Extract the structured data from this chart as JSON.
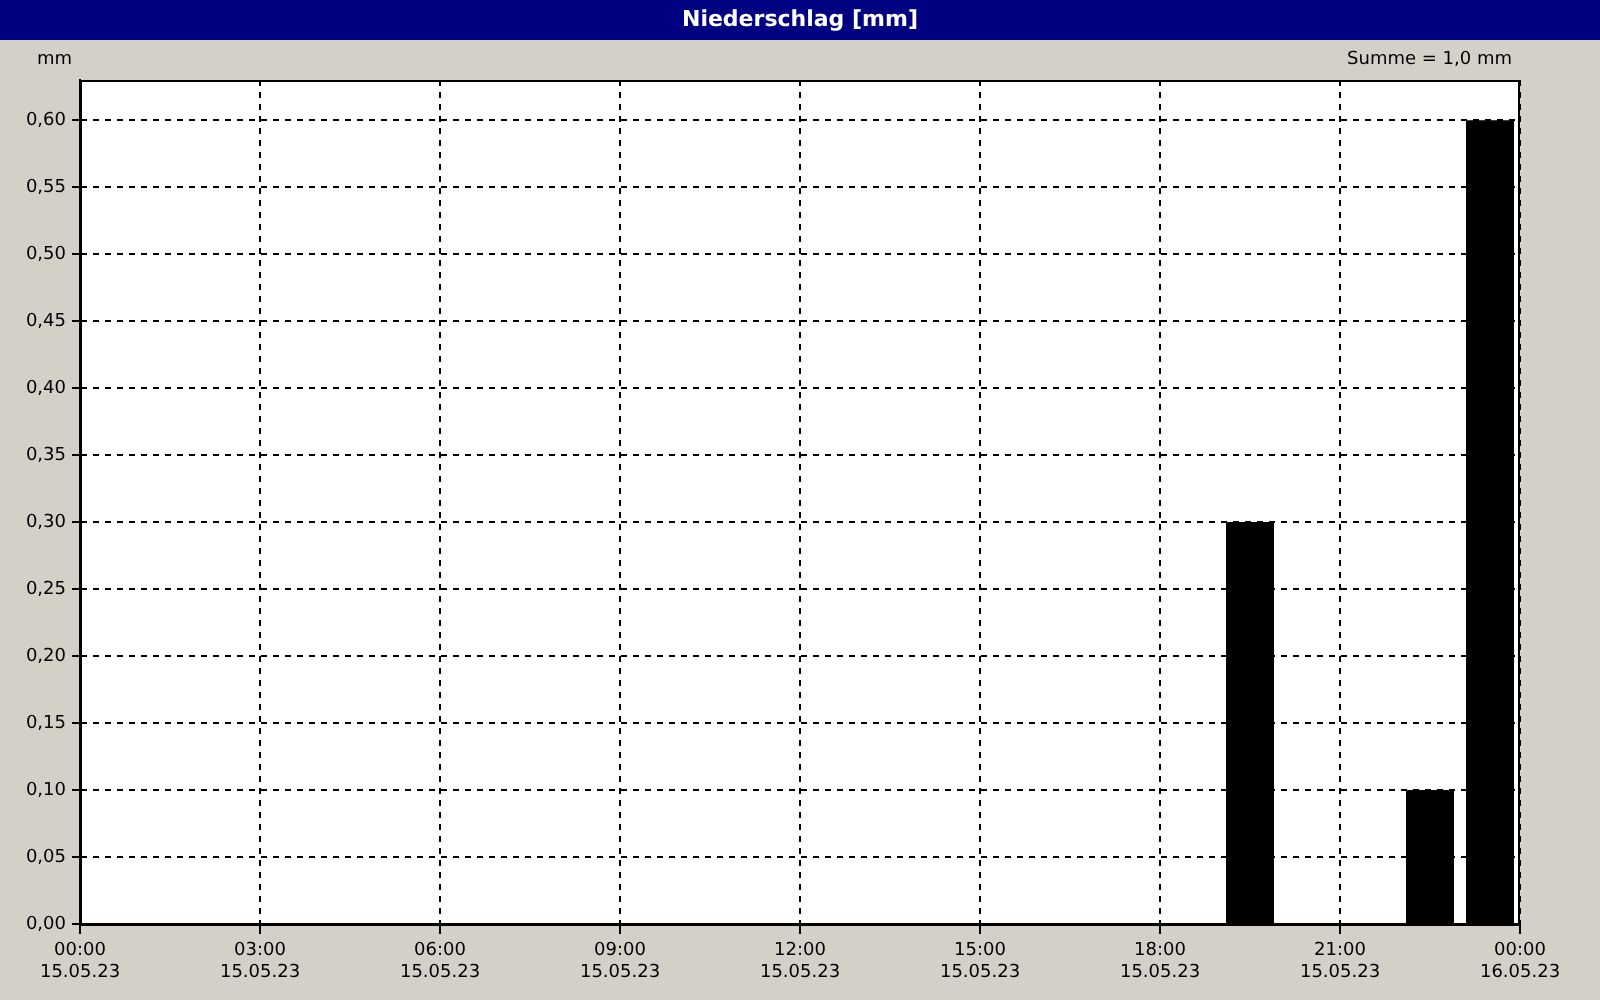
{
  "chart_data": {
    "type": "bar",
    "title": "Niederschlag [mm]",
    "ylabel": "mm",
    "annotations": [
      "Summe = 1,0 mm"
    ],
    "x": [
      "--05-15T19:30",
      "--05-15T22:30",
      "--05-15T23:30"
    ],
    "values": [
      0.3,
      0.1,
      0.6
    ],
    "color": "#000000",
    "xlim": [
      "--05-15T00:00",
      "--05-16T00:00"
    ],
    "xticks": [
      {
        "value": "--05-15T00:00",
        "label": "00:00\n15.05.23"
      },
      {
        "value": "--05-15T03:00",
        "label": "03:00\n15.05.23"
      },
      {
        "value": "--05-15T06:00",
        "label": "06:00\n15.05.23"
      },
      {
        "value": "--05-15T09:00",
        "label": "09:00\n15.05.23"
      },
      {
        "value": "--05-15T12:00",
        "label": "12:00\n15.05.23"
      },
      {
        "value": "--05-15T15:00",
        "label": "15:00\n15.05.23"
      },
      {
        "value": "--05-15T18:00",
        "label": "18:00\n15.05.23"
      },
      {
        "value": "--05-15T21:00",
        "label": "21:00\n15.05.23"
      },
      {
        "value": "--05-16T00:00",
        "label": "00:00\n16.05.23"
      }
    ],
    "ylim": [
      0,
      0.63
    ],
    "yticks": [
      {
        "value": 0,
        "label": "0,00"
      },
      {
        "value": 0.05,
        "label": "0,05"
      },
      {
        "value": 0.1,
        "label": "0,10"
      },
      {
        "value": 0.15,
        "label": "0,15"
      },
      {
        "value": 0.2,
        "label": "0,20"
      },
      {
        "value": 0.25,
        "label": "0,25"
      },
      {
        "value": 0.3,
        "label": "0,30"
      },
      {
        "value": 0.35,
        "label": "0,35"
      },
      {
        "value": 0.4,
        "label": "0,40"
      },
      {
        "value": 0.45,
        "label": "0,45"
      },
      {
        "value": 0.5,
        "label": "0,50"
      },
      {
        "value": 0.55,
        "label": "0,55"
      },
      {
        "value": 0.6,
        "label": "0,60"
      }
    ],
    "grid": true
  }
}
